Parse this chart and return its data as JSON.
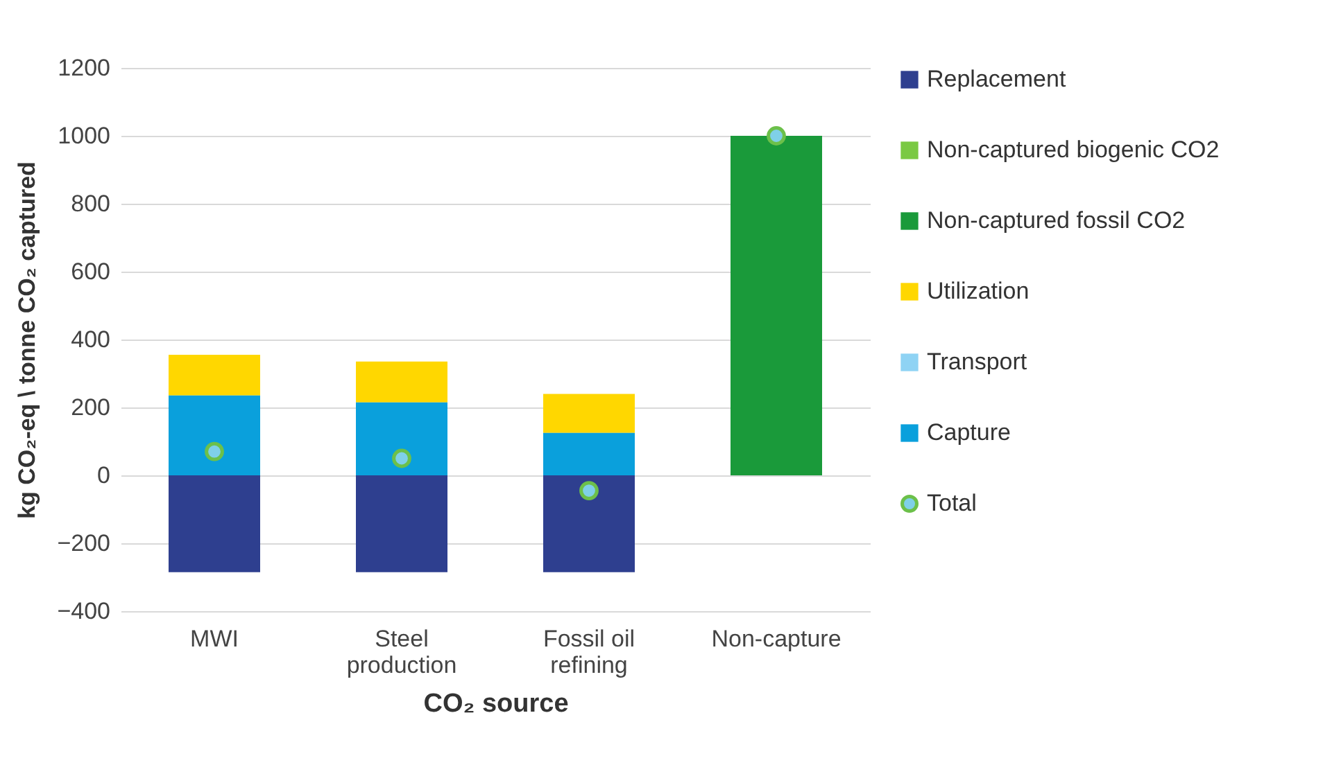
{
  "chart_data": {
    "type": "bar",
    "stacked": true,
    "xlabel": "CO₂ source",
    "ylabel": "kg CO₂-eq \\ tonne CO₂ captured",
    "categories": [
      "MWI",
      "Steel production",
      "Fossil oil refining",
      "Non-capture"
    ],
    "series": [
      {
        "name": "Replacement",
        "color": "#2e3f8f",
        "values": [
          -285,
          -285,
          -285,
          null
        ]
      },
      {
        "name": "Non-captured biogenic CO2",
        "color": "#7ac943",
        "values": [
          null,
          null,
          null,
          null
        ]
      },
      {
        "name": "Non-captured fossil CO2",
        "color": "#1a9a3a",
        "values": [
          null,
          null,
          null,
          1000
        ]
      },
      {
        "name": "Utilization",
        "color": "#ffd700",
        "values": [
          120,
          120,
          115,
          null
        ]
      },
      {
        "name": "Transport",
        "color": "#8fd3f4",
        "values": [
          null,
          null,
          null,
          null
        ]
      },
      {
        "name": "Capture",
        "color": "#0aa0dc",
        "values": [
          235,
          215,
          125,
          null
        ]
      },
      {
        "name": "Total",
        "type": "scatter",
        "color": "#7fd0e8",
        "marker": "circle",
        "x": [
          "MWI",
          "Steel production",
          "Fossil oil refining",
          "Non-capture"
        ],
        "values": [
          70,
          50,
          -45,
          1000
        ]
      }
    ],
    "ylim": [
      -400,
      1200
    ],
    "yticks": [
      -400,
      -200,
      0,
      200,
      400,
      600,
      800,
      1000,
      1200
    ],
    "grid": "y",
    "legend": "right"
  }
}
